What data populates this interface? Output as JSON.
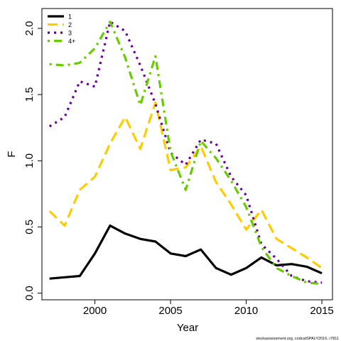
{
  "chart_data": {
    "type": "line",
    "xlabel": "Year",
    "ylabel": "F",
    "xlim": [
      1996.5,
      2015.7
    ],
    "ylim": [
      -0.05,
      2.15
    ],
    "xticks": [
      2000,
      2005,
      2010,
      2015
    ],
    "yticks": [
      0.0,
      0.5,
      1.0,
      1.5,
      2.0
    ],
    "xtick_labels": [
      "2000",
      "2005",
      "2010",
      "2015"
    ],
    "ytick_labels": [
      "0.0",
      "0.5",
      "1.0",
      "1.5",
      "2.0"
    ],
    "legend_position": "top-left",
    "grid": false,
    "x": [
      1997,
      1998,
      1999,
      2000,
      2001,
      2002,
      2003,
      2004,
      2005,
      2006,
      2007,
      2008,
      2009,
      2010,
      2011,
      2012,
      2013,
      2014,
      2015
    ],
    "series": [
      {
        "name": "1",
        "color": "#000000",
        "dash": "solid",
        "values": [
          0.11,
          0.12,
          0.13,
          0.3,
          0.51,
          0.45,
          0.41,
          0.39,
          0.3,
          0.28,
          0.33,
          0.19,
          0.14,
          0.19,
          0.27,
          0.21,
          0.22,
          0.2,
          0.15
        ]
      },
      {
        "name": "2",
        "color": "#FFCC00",
        "dash": "long",
        "values": [
          0.62,
          0.51,
          0.78,
          0.88,
          1.13,
          1.33,
          1.09,
          1.44,
          0.93,
          0.95,
          1.11,
          0.84,
          0.67,
          0.48,
          0.63,
          0.41,
          0.34,
          0.27,
          0.19
        ]
      },
      {
        "name": "3",
        "color": "#660099",
        "dash": "dot",
        "values": [
          1.26,
          1.33,
          1.6,
          1.56,
          2.05,
          1.98,
          1.72,
          1.43,
          1.06,
          0.97,
          1.16,
          1.13,
          0.88,
          0.74,
          0.37,
          0.26,
          0.13,
          0.09,
          0.08
        ]
      },
      {
        "name": "4+",
        "color": "#66CC00",
        "dash": "dashdot",
        "values": [
          1.73,
          1.72,
          1.74,
          1.85,
          2.05,
          1.78,
          1.42,
          1.79,
          1.07,
          0.78,
          1.15,
          1.02,
          0.85,
          0.65,
          0.35,
          0.19,
          0.13,
          0.08,
          0.07
        ]
      }
    ],
    "credit": "stockassessment.org, codcatSPALY2016, r7811"
  }
}
